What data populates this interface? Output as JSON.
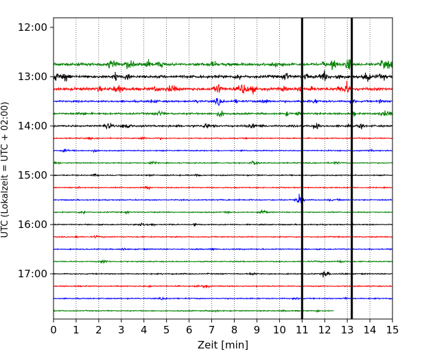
{
  "chart_data": {
    "type": "line",
    "title": "",
    "xlabel": "Zeit  [min]",
    "ylabel": "UTC (Lokalzeit = UTC + 02:00)",
    "xlim": [
      0,
      15
    ],
    "x_ticks": [
      0,
      1,
      2,
      3,
      4,
      5,
      6,
      7,
      8,
      9,
      10,
      11,
      12,
      13,
      14,
      15
    ],
    "y_tick_labels": [
      "12:00",
      "13:00",
      "14:00",
      "15:00",
      "16:00",
      "17:00"
    ],
    "grid": "vertical dotted at each minute",
    "trace_interval_minutes": 15,
    "trace_start": "12:45",
    "trace_end": "17:45",
    "color_cycle": [
      "#008000",
      "#000000",
      "#ff0000",
      "#0000ff"
    ],
    "traces": [
      {
        "start": "12:45",
        "color": "#008000",
        "activity": "high",
        "end_x": 15
      },
      {
        "start": "13:00",
        "color": "#000000",
        "activity": "high",
        "end_x": 15
      },
      {
        "start": "13:15",
        "color": "#ff0000",
        "activity": "high",
        "end_x": 15
      },
      {
        "start": "13:30",
        "color": "#0000ff",
        "activity": "medium",
        "end_x": 15
      },
      {
        "start": "13:45",
        "color": "#008000",
        "activity": "medium",
        "end_x": 15
      },
      {
        "start": "14:00",
        "color": "#000000",
        "activity": "medium",
        "end_x": 15
      },
      {
        "start": "14:15",
        "color": "#ff0000",
        "activity": "low",
        "end_x": 15
      },
      {
        "start": "14:30",
        "color": "#0000ff",
        "activity": "low",
        "end_x": 15
      },
      {
        "start": "14:45",
        "color": "#008000",
        "activity": "low",
        "end_x": 15
      },
      {
        "start": "15:00",
        "color": "#000000",
        "activity": "low",
        "end_x": 15
      },
      {
        "start": "15:15",
        "color": "#ff0000",
        "activity": "low",
        "end_x": 15
      },
      {
        "start": "15:30",
        "color": "#0000ff",
        "activity": "low",
        "end_x": 15
      },
      {
        "start": "15:45",
        "color": "#008000",
        "activity": "low",
        "end_x": 15
      },
      {
        "start": "16:00",
        "color": "#000000",
        "activity": "low",
        "end_x": 15
      },
      {
        "start": "16:15",
        "color": "#ff0000",
        "activity": "low",
        "end_x": 15
      },
      {
        "start": "16:30",
        "color": "#0000ff",
        "activity": "low",
        "end_x": 15
      },
      {
        "start": "16:45",
        "color": "#008000",
        "activity": "low",
        "end_x": 15
      },
      {
        "start": "17:00",
        "color": "#000000",
        "activity": "low",
        "end_x": 15
      },
      {
        "start": "17:15",
        "color": "#ff0000",
        "activity": "low",
        "end_x": 15
      },
      {
        "start": "17:30",
        "color": "#0000ff",
        "activity": "low",
        "end_x": 15
      },
      {
        "start": "17:45",
        "color": "#008000",
        "activity": "low",
        "end_x": 12.4
      }
    ],
    "events": [
      {
        "trace": "13:30",
        "x": 7.3,
        "amplitude": "medium"
      },
      {
        "trace": "13:45",
        "x": 7.4,
        "amplitude": "medium"
      },
      {
        "trace": "14:00",
        "x": 2.4,
        "amplitude": "medium"
      },
      {
        "trace": "14:00",
        "x": 11.6,
        "amplitude": "medium"
      },
      {
        "trace": "14:45",
        "x": 8.9,
        "amplitude": "small"
      },
      {
        "trace": "15:30",
        "x": 10.9,
        "amplitude": "large"
      },
      {
        "trace": "15:45",
        "x": 9.3,
        "amplitude": "small"
      },
      {
        "trace": "17:00",
        "x": 12.0,
        "amplitude": "small"
      }
    ],
    "vertical_markers": [
      11.0,
      13.2
    ]
  }
}
